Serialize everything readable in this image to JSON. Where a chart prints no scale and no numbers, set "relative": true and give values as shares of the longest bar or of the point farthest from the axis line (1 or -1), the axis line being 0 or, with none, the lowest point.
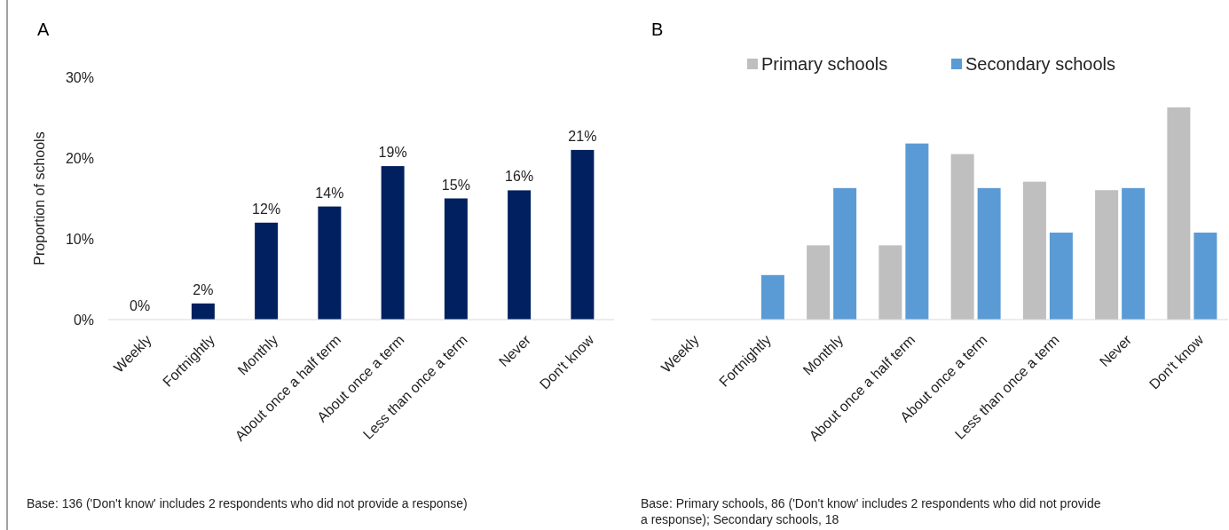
{
  "chart_data": [
    {
      "type": "bar",
      "title": "A",
      "ylabel": "Proportion of schools",
      "categories": [
        "Weekly",
        "Fortnightly",
        "Monthly",
        "About once a half term",
        "About once a term",
        "Less than once a term",
        "Never",
        "Don't know"
      ],
      "series": [
        {
          "color": "#002060",
          "values": [
            0,
            2,
            12,
            14,
            19,
            15,
            16,
            21
          ],
          "value_labels": [
            "0%",
            "2%",
            "12%",
            "14%",
            "19%",
            "15%",
            "16%",
            "21%"
          ]
        }
      ],
      "ylim": [
        0,
        30
      ],
      "yticks": [
        {
          "value": 0,
          "label": "0%"
        },
        {
          "value": 10,
          "label": "10%"
        },
        {
          "value": 20,
          "label": "20%"
        },
        {
          "value": 30,
          "label": "30%"
        }
      ],
      "grid": false,
      "legend": false,
      "annotations": [
        "Base: 136 ('Don't know' includes 2 respondents who did not provide a response)"
      ]
    },
    {
      "type": "bar",
      "title": "B",
      "relative": true,
      "categories": [
        "Weekly",
        "Fortnightly",
        "Monthly",
        "About once a half term",
        "About once a term",
        "Less than once a term",
        "Never",
        "Don't know"
      ],
      "series": [
        {
          "name": "Primary schools",
          "color": "#bfbfbf",
          "values": [
            0,
            0,
            0.35,
            0.35,
            0.78,
            0.65,
            0.61,
            1
          ]
        },
        {
          "name": "Secondary schools",
          "color": "#5b9bd5",
          "values": [
            0,
            0.21,
            0.62,
            0.83,
            0.62,
            0.41,
            0.62,
            0.41
          ]
        }
      ],
      "grid": false,
      "legend": "top",
      "annotations": [
        "Base: Primary schools, 86 ('Don't know' includes 2 respondents who did not provide a response); Secondary schools, 18"
      ]
    }
  ]
}
